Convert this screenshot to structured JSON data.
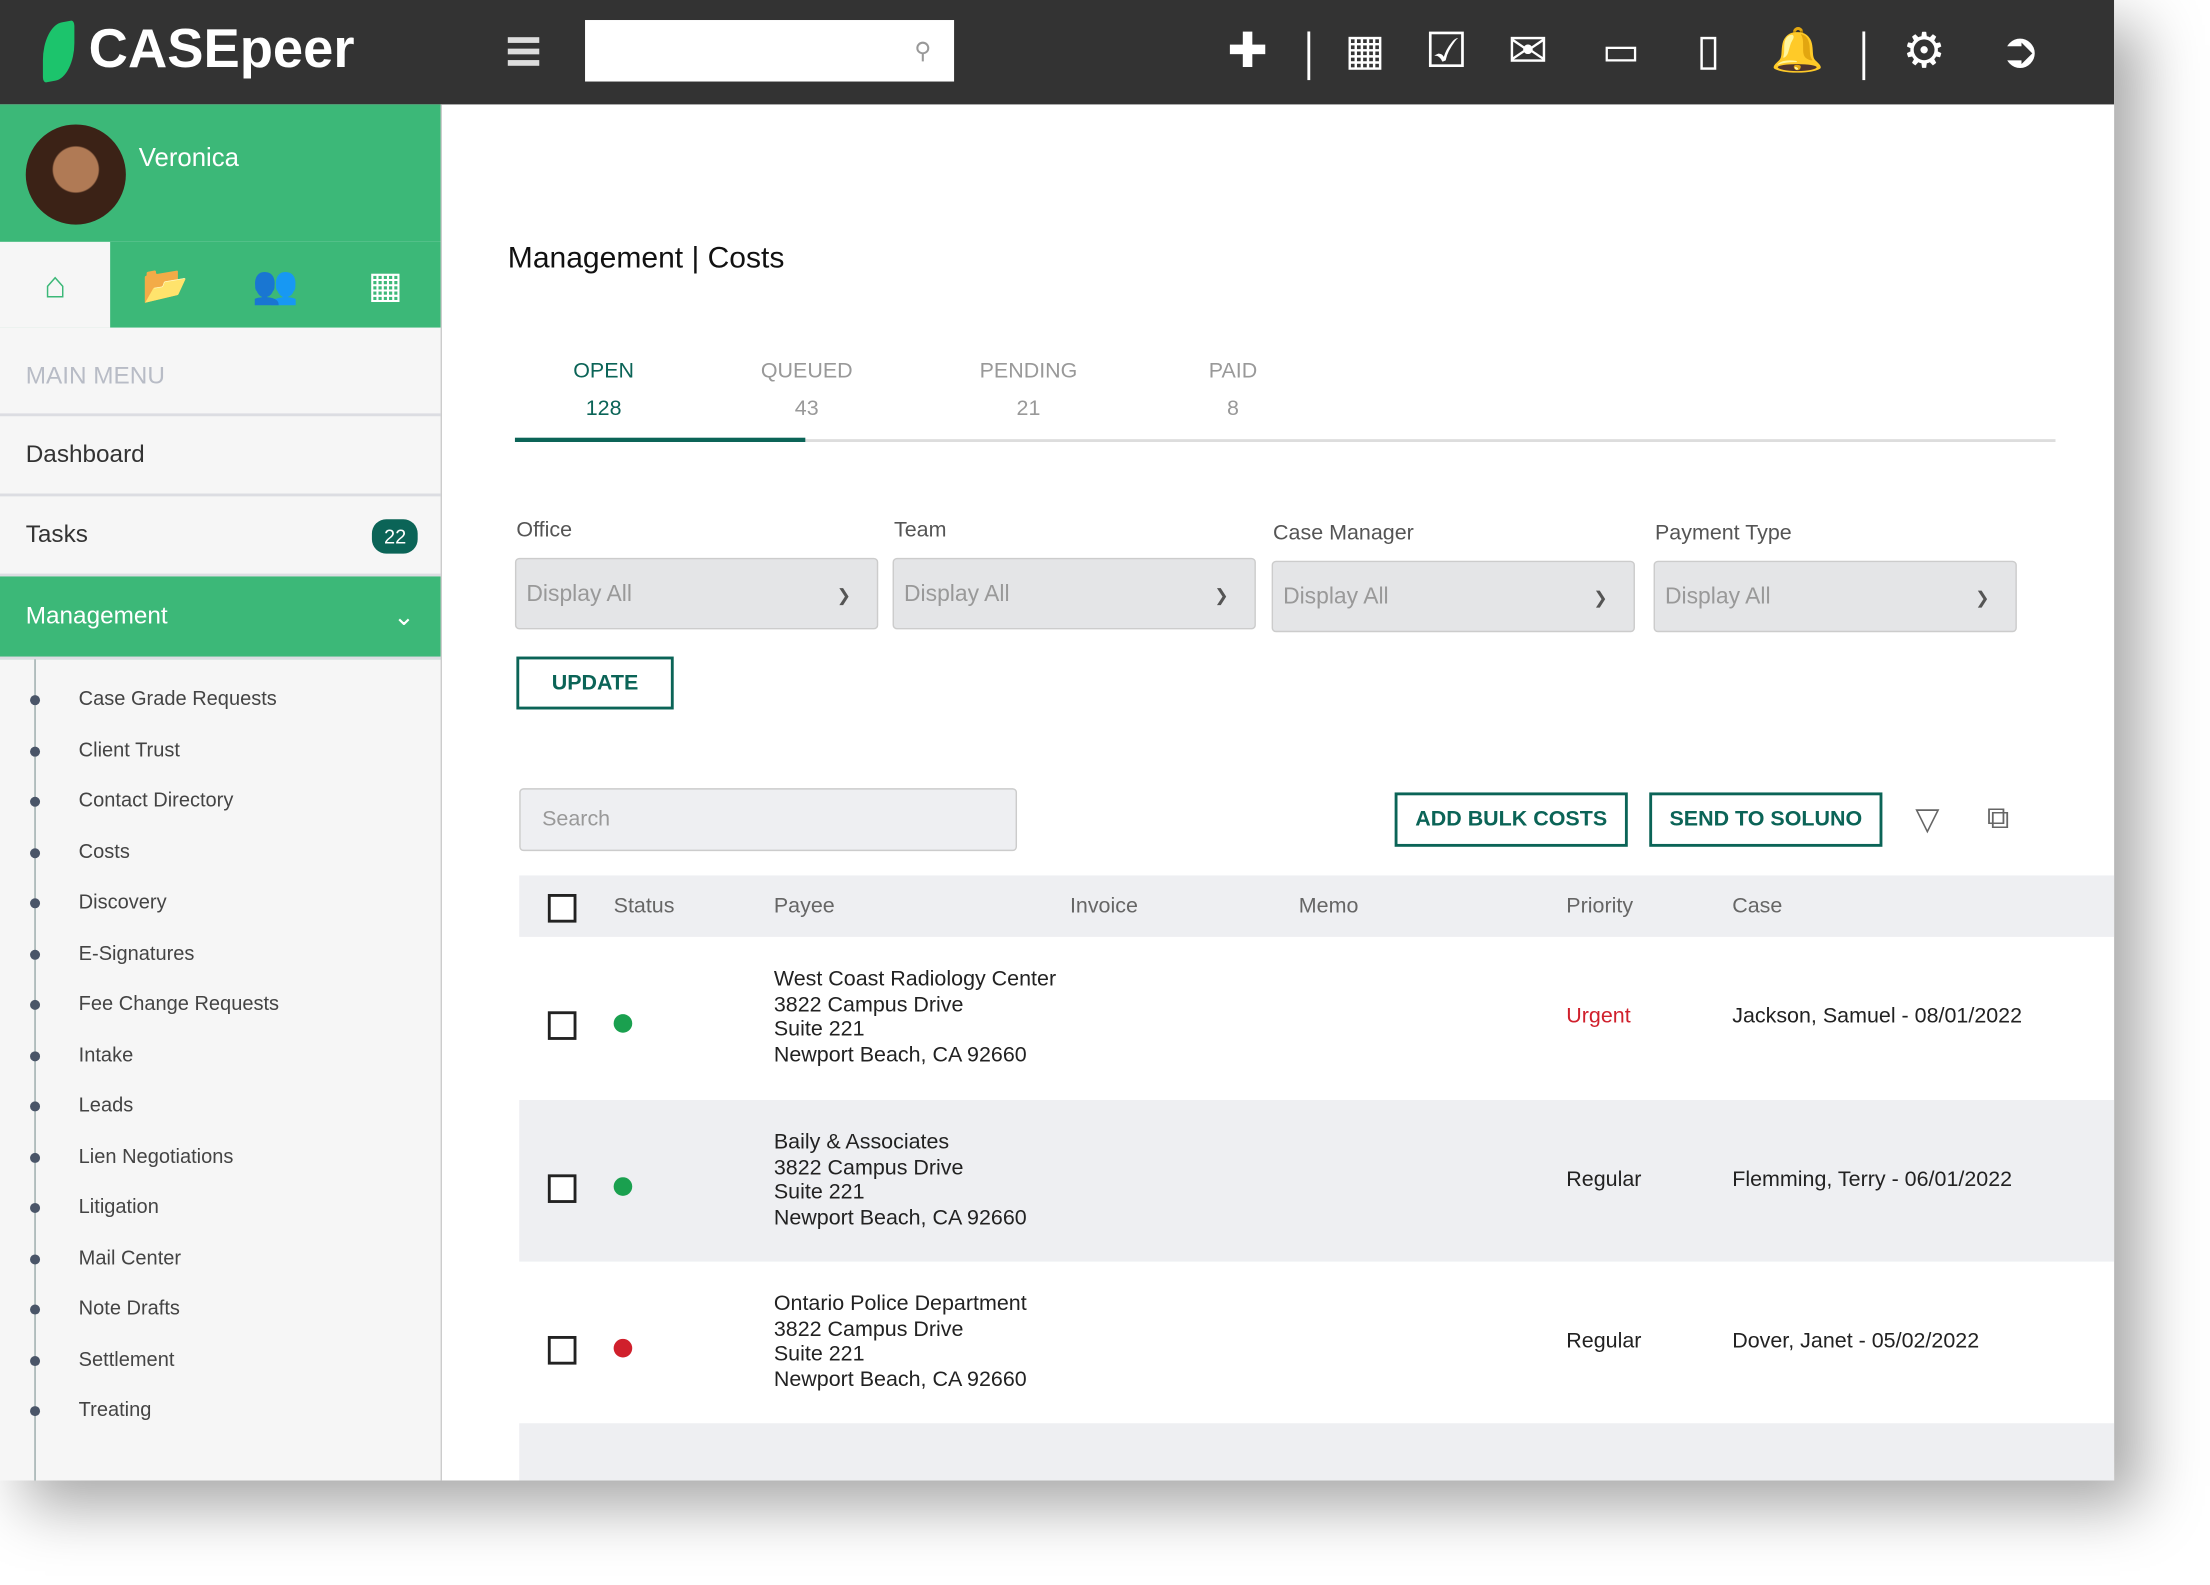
{
  "app": {
    "brand": "CASEpeer",
    "colors": {
      "topbar": "#333333",
      "brand_green": "#3cb878",
      "accent_teal": "#0b6457",
      "urgent": "#d0202c",
      "status_green": "#1aa04f",
      "status_red": "#d0202c"
    }
  },
  "topbar": {
    "search_value": "",
    "icons": [
      "plus-icon",
      "calendar-icon",
      "checkbox-icon",
      "mail-icon",
      "inbox-icon",
      "mobile-icon",
      "bell-icon",
      "gear-icon",
      "logout-icon"
    ]
  },
  "sidebar": {
    "user": "Veronica",
    "main_menu": "MAIN MENU",
    "items": [
      {
        "label": "Dashboard"
      },
      {
        "label": "Tasks",
        "badge": "22"
      },
      {
        "label": "Management"
      }
    ],
    "sub_items": [
      "Case Grade Requests",
      "Client Trust",
      "Contact Directory",
      "Costs",
      "Discovery",
      "E-Signatures",
      "Fee Change Requests",
      "Intake",
      "Leads",
      "Lien Negotiations",
      "Litigation",
      "Mail Center",
      "Note Drafts",
      "Settlement",
      "Treating"
    ]
  },
  "page": {
    "title": "Management | Costs",
    "tabs": [
      {
        "label": "OPEN",
        "count": "128"
      },
      {
        "label": "QUEUED",
        "count": "43"
      },
      {
        "label": "PENDING",
        "count": "21"
      },
      {
        "label": "PAID",
        "count": "8"
      }
    ],
    "filters": [
      {
        "label": "Office",
        "value": "Display All"
      },
      {
        "label": "Team",
        "value": "Display All"
      },
      {
        "label": "Case Manager",
        "value": "Display All"
      },
      {
        "label": "Payment Type",
        "value": "Display All"
      }
    ],
    "update": "UPDATE",
    "search_placeholder": "Search",
    "add_bulk": "ADD BULK COSTS",
    "send": "SEND TO SOLUNO",
    "columns": [
      "Status",
      "Payee",
      "Invoice",
      "Memo",
      "Priority",
      "Case"
    ],
    "rows": [
      {
        "status": "green",
        "payee": [
          "West Coast Radiology Center",
          "3822 Campus Drive",
          "Suite 221",
          "Newport Beach, CA 92660"
        ],
        "invoice": "",
        "memo": "",
        "priority": "Urgent",
        "case": "Jackson, Samuel - 08/01/2022"
      },
      {
        "status": "green",
        "payee": [
          "Baily & Associates",
          "3822 Campus Drive",
          "Suite 221",
          "Newport Beach, CA 92660"
        ],
        "invoice": "",
        "memo": "",
        "priority": "Regular",
        "case": "Flemming, Terry - 06/01/2022"
      },
      {
        "status": "red",
        "payee": [
          "Ontario Police Department",
          "3822 Campus Drive",
          "Suite 221",
          "Newport Beach, CA 92660"
        ],
        "invoice": "",
        "memo": "",
        "priority": "Regular",
        "case": "Dover, Janet - 05/02/2022"
      }
    ]
  }
}
